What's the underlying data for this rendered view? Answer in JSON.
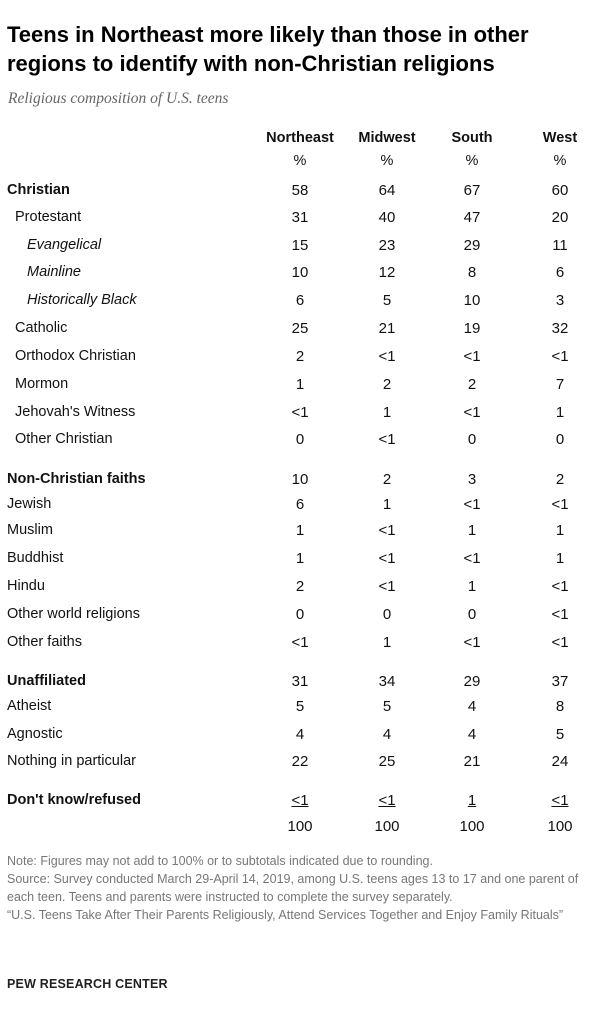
{
  "title": "Teens in Northeast more likely than those in other regions to identify with non-Christian religions",
  "subtitle": "Religious composition of U.S. teens",
  "chart_data": {
    "type": "table",
    "columns": [
      "Northeast",
      "Midwest",
      "South",
      "West"
    ],
    "unit": "%",
    "rows": [
      {
        "label": "Christian",
        "level": 0,
        "bold": true,
        "values": [
          "58",
          "64",
          "67",
          "60"
        ]
      },
      {
        "label": "Protestant",
        "level": 1,
        "values": [
          "31",
          "40",
          "47",
          "20"
        ]
      },
      {
        "label": "Evangelical",
        "level": 2,
        "italic": true,
        "values": [
          "15",
          "23",
          "29",
          "11"
        ]
      },
      {
        "label": "Mainline",
        "level": 2,
        "italic": true,
        "values": [
          "10",
          "12",
          "8",
          "6"
        ]
      },
      {
        "label": "Historically Black",
        "level": 2,
        "italic": true,
        "values": [
          "6",
          "5",
          "10",
          "3"
        ]
      },
      {
        "label": "Catholic",
        "level": 1,
        "values": [
          "25",
          "21",
          "19",
          "32"
        ]
      },
      {
        "label": "Orthodox Christian",
        "level": 1,
        "values": [
          "2",
          "<1",
          "<1",
          "<1"
        ]
      },
      {
        "label": "Mormon",
        "level": 1,
        "values": [
          "1",
          "2",
          "2",
          "7"
        ]
      },
      {
        "label": "Jehovah's Witness",
        "level": 1,
        "values": [
          "<1",
          "1",
          "<1",
          "1"
        ]
      },
      {
        "label": "Other Christian",
        "level": 1,
        "values": [
          "0",
          "<1",
          "0",
          "0"
        ]
      },
      {
        "label": "Non-Christian faiths",
        "level": 0,
        "bold": true,
        "values": [
          "10",
          "2",
          "3",
          "2"
        ]
      },
      {
        "label": "Jewish",
        "level": 0,
        "values": [
          "6",
          "1",
          "<1",
          "<1"
        ]
      },
      {
        "label": "Muslim",
        "level": 0,
        "values": [
          "1",
          "<1",
          "1",
          "1"
        ]
      },
      {
        "label": "Buddhist",
        "level": 0,
        "values": [
          "1",
          "<1",
          "<1",
          "1"
        ]
      },
      {
        "label": "Hindu",
        "level": 0,
        "values": [
          "2",
          "<1",
          "1",
          "<1"
        ]
      },
      {
        "label": "Other world religions",
        "level": 0,
        "values": [
          "0",
          "0",
          "0",
          "<1"
        ]
      },
      {
        "label": "Other faiths",
        "level": 0,
        "values": [
          "<1",
          "1",
          "<1",
          "<1"
        ]
      },
      {
        "label": "Unaffiliated",
        "level": 0,
        "bold": true,
        "values": [
          "31",
          "34",
          "29",
          "37"
        ]
      },
      {
        "label": "Atheist",
        "level": 0,
        "values": [
          "5",
          "5",
          "4",
          "8"
        ]
      },
      {
        "label": "Agnostic",
        "level": 0,
        "values": [
          "4",
          "4",
          "4",
          "5"
        ]
      },
      {
        "label": "Nothing in particular",
        "level": 0,
        "values": [
          "22",
          "25",
          "21",
          "24"
        ]
      },
      {
        "label": "Don't know/refused",
        "level": 0,
        "bold": true,
        "underline": true,
        "values": [
          "<1",
          "<1",
          "1",
          "<1"
        ]
      },
      {
        "label": "",
        "level": 0,
        "values": [
          "100",
          "100",
          "100",
          "100"
        ]
      }
    ]
  },
  "notes": [
    "Note: Figures may not add to 100% or to subtotals indicated due to rounding.",
    "Source: Survey conducted March 29-April 14, 2019, among U.S. teens ages 13 to 17 and one parent of each teen. Teens and parents were instructed to complete the survey separately.",
    "“U.S. Teens Take After Their Parents Religiously, Attend Services Together and Enjoy Family Rituals”"
  ],
  "source_label": "PEW RESEARCH CENTER"
}
